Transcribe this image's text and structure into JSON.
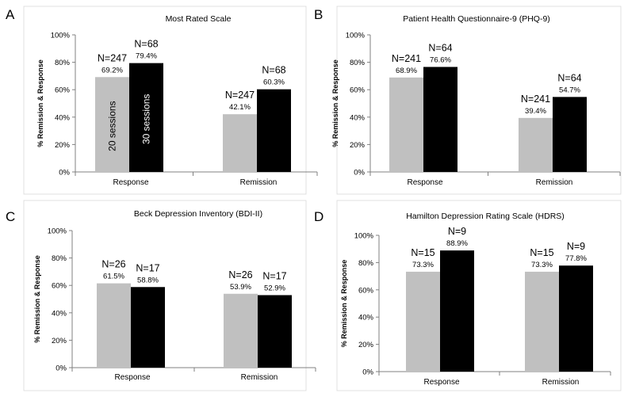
{
  "chart_data": [
    {
      "type": "bar",
      "panel": "A",
      "title": "Most Rated Scale",
      "ylabel": "% Remission & Response",
      "xlabel": "",
      "ylim": [
        0,
        100
      ],
      "yticks": [
        "0%",
        "20%",
        "40%",
        "60%",
        "80%",
        "100%"
      ],
      "categories": [
        "Response",
        "Remission"
      ],
      "series": [
        {
          "name": "20 sessions",
          "color": "#c0c0c0",
          "values": [
            69.2,
            42.1
          ],
          "pct_labels": [
            "69.2%",
            "42.1%"
          ],
          "n_labels": [
            "N=247",
            "N=247"
          ]
        },
        {
          "name": "30 sessions",
          "color": "#000000",
          "values": [
            79.4,
            60.3
          ],
          "pct_labels": [
            "79.4%",
            "60.3%"
          ],
          "n_labels": [
            "N=68",
            "N=68"
          ]
        }
      ],
      "series_labels_in_bars": true
    },
    {
      "type": "bar",
      "panel": "B",
      "title": "Patient Health Questionnaire-9 (PHQ-9)",
      "ylabel": "% Remission & Response",
      "xlabel": "",
      "ylim": [
        0,
        100
      ],
      "yticks": [
        "0%",
        "20%",
        "40%",
        "60%",
        "80%",
        "100%"
      ],
      "categories": [
        "Response",
        "Remission"
      ],
      "series": [
        {
          "name": "20 sessions",
          "color": "#c0c0c0",
          "values": [
            68.9,
            39.4
          ],
          "pct_labels": [
            "68.9%",
            "39.4%"
          ],
          "n_labels": [
            "N=241",
            "N=241"
          ]
        },
        {
          "name": "30 sessions",
          "color": "#000000",
          "values": [
            76.6,
            54.7
          ],
          "pct_labels": [
            "76.6%",
            "54.7%"
          ],
          "n_labels": [
            "N=64",
            "N=64"
          ]
        }
      ],
      "series_labels_in_bars": false
    },
    {
      "type": "bar",
      "panel": "C",
      "title": "Beck Depression Inventory (BDI-II)",
      "ylabel": "% Remission & Response",
      "xlabel": "",
      "ylim": [
        0,
        100
      ],
      "yticks": [
        "0%",
        "20%",
        "40%",
        "60%",
        "80%",
        "100%"
      ],
      "categories": [
        "Response",
        "Remission"
      ],
      "series": [
        {
          "name": "20 sessions",
          "color": "#c0c0c0",
          "values": [
            61.5,
            53.9
          ],
          "pct_labels": [
            "61.5%",
            "53.9%"
          ],
          "n_labels": [
            "N=26",
            "N=26"
          ]
        },
        {
          "name": "30 sessions",
          "color": "#000000",
          "values": [
            58.8,
            52.9
          ],
          "pct_labels": [
            "58.8%",
            "52.9%"
          ],
          "n_labels": [
            "N=17",
            "N=17"
          ]
        }
      ],
      "series_labels_in_bars": false
    },
    {
      "type": "bar",
      "panel": "D",
      "title": "Hamilton Depression Rating Scale (HDRS)",
      "ylabel": "% Remission & Response",
      "xlabel": "",
      "ylim": [
        0,
        100
      ],
      "yticks": [
        "0%",
        "20%",
        "40%",
        "60%",
        "80%",
        "100%"
      ],
      "categories": [
        "Response",
        "Remission"
      ],
      "series": [
        {
          "name": "20 sessions",
          "color": "#c0c0c0",
          "values": [
            73.3,
            73.3
          ],
          "pct_labels": [
            "73.3%",
            "73.3%"
          ],
          "n_labels": [
            "N=15",
            "N=15"
          ]
        },
        {
          "name": "30 sessions",
          "color": "#000000",
          "values": [
            88.9,
            77.8
          ],
          "pct_labels": [
            "88.9%",
            "77.8%"
          ],
          "n_labels": [
            "N=9",
            "N=9"
          ]
        }
      ],
      "series_labels_in_bars": false
    }
  ]
}
